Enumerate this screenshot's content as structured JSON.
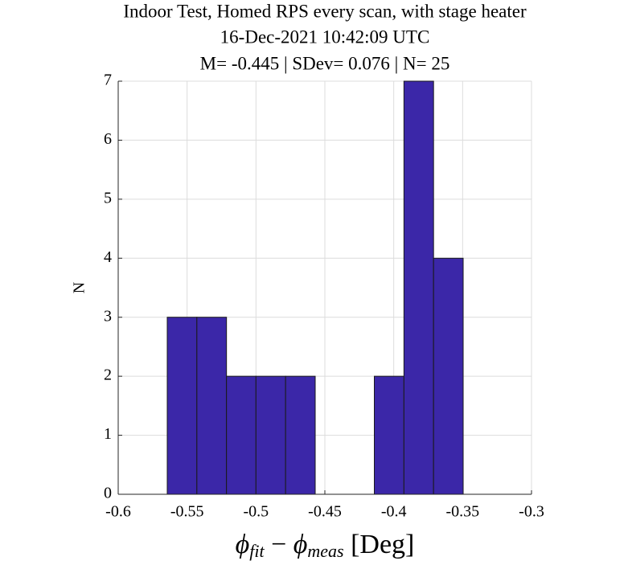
{
  "chart_data": {
    "type": "histogram",
    "title": [
      "Indoor Test, Homed RPS every scan, with stage heater",
      "16-Dec-2021 10:42:09 UTC",
      "M= -0.445 | SDev= 0.076 | N= 25"
    ],
    "xlabel_parts": [
      "ϕ",
      "fit",
      " − ",
      "ϕ",
      "meas",
      " [Deg]"
    ],
    "ylabel": "N",
    "bins": [
      -0.5644,
      -0.5429,
      -0.5214,
      -0.5,
      -0.4785,
      -0.457,
      -0.4355,
      -0.4141,
      -0.3926,
      -0.3711,
      -0.3496
    ],
    "values": [
      3,
      3,
      2,
      2,
      2,
      0,
      0,
      2,
      7,
      4
    ],
    "color": "#3b27a8",
    "xlim": [
      -0.6,
      -0.3
    ],
    "xticks": [
      -0.6,
      -0.55,
      -0.5,
      -0.45,
      -0.4,
      -0.35,
      -0.3
    ],
    "ylim": [
      0,
      7
    ],
    "yticks": [
      0,
      1,
      2,
      3,
      4,
      5,
      6,
      7
    ],
    "grid": true
  }
}
